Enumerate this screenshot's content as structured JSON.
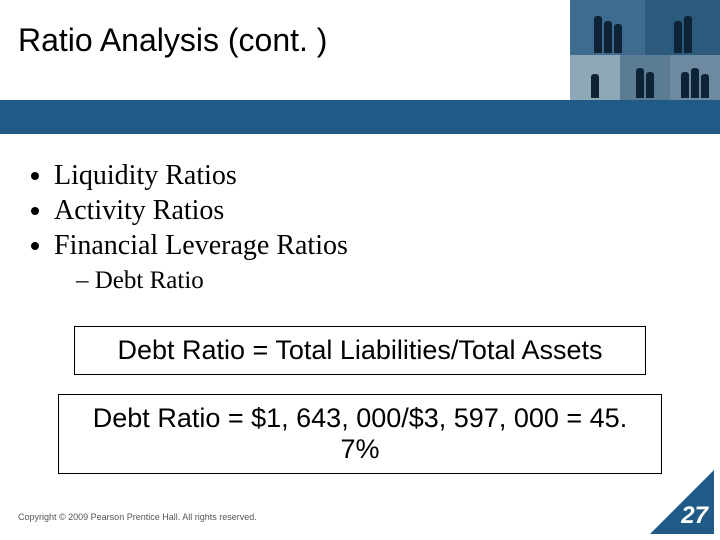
{
  "colors": {
    "accent_bar": "#1f5b86",
    "text": "#000000",
    "footer_text": "#555555",
    "page_number_bg": "#1f5b86",
    "page_number_text": "#ffffff",
    "background": "#ffffff"
  },
  "typography": {
    "title_font": "Arial",
    "title_size_pt": 32,
    "body_font": "Times New Roman",
    "body_size_pt": 28,
    "subbullet_size_pt": 25,
    "formula_font": "Arial",
    "formula_size_pt": 27,
    "footer_size_pt": 9,
    "page_number_size_pt": 24
  },
  "title": "Ratio Analysis (cont. )",
  "bullets": {
    "b0": "Liquidity Ratios",
    "b1": "Activity Ratios",
    "b2": "Financial Leverage Ratios",
    "sub0": "Debt Ratio"
  },
  "formulas": {
    "f1": "Debt Ratio = Total Liabilities/Total Assets",
    "f2": "Debt Ratio = $1, 643, 000/$3, 597, 000  =  45. 7%"
  },
  "footer": "Copyright © 2009 Pearson Prentice Hall. All rights reserved.",
  "page_number": "27"
}
